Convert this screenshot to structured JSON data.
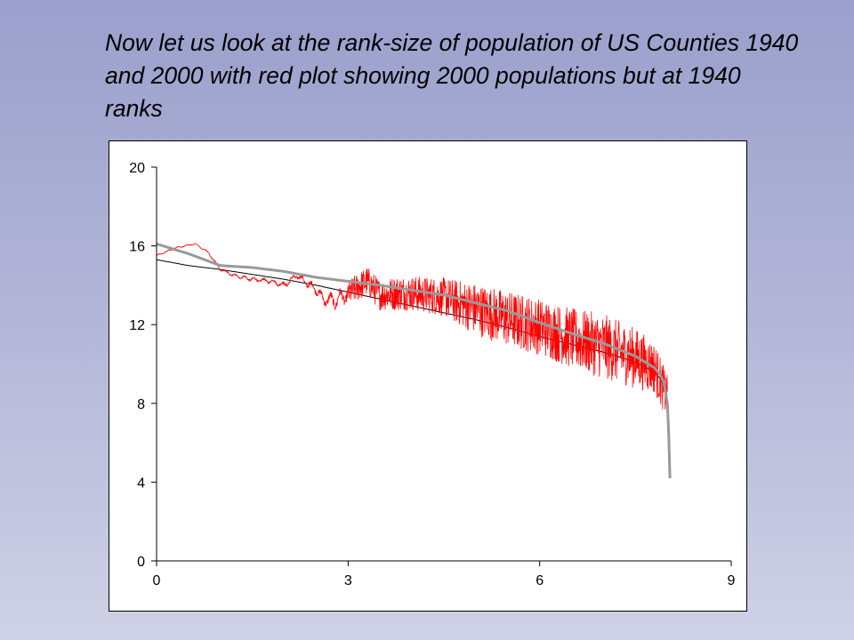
{
  "slide": {
    "title": "Now let us look at the rank-size of population of US Counties 1940 and 2000 with red plot showing 2000 populations but at 1940 ranks"
  },
  "chart_data": {
    "type": "line",
    "title": "",
    "xlabel": "",
    "ylabel": "",
    "xlim": [
      0,
      9
    ],
    "ylim": [
      0,
      20
    ],
    "x_ticks": [
      "0",
      "3",
      "6",
      "9"
    ],
    "y_ticks": [
      "0",
      "4",
      "8",
      "12",
      "16",
      "20"
    ],
    "grid": false,
    "legend": "none",
    "series": [
      {
        "color": "#000000",
        "style": "thin",
        "x": [
          0,
          0.5,
          1,
          1.5,
          2,
          2.5,
          3,
          3.5,
          4,
          4.5,
          5,
          5.5,
          6,
          6.5,
          7,
          7.5,
          7.8,
          7.9,
          7.95,
          8.0,
          8.02,
          8.04
        ],
        "y": [
          15.3,
          15.0,
          14.8,
          14.55,
          14.3,
          14.0,
          13.65,
          13.3,
          12.95,
          12.6,
          12.25,
          11.85,
          11.4,
          11.0,
          10.6,
          10.1,
          9.6,
          9.2,
          8.8,
          8.0,
          7.2,
          5.5
        ]
      },
      {
        "color": "#999999",
        "style": "thick",
        "x": [
          0,
          0.5,
          1,
          1.5,
          2,
          2.5,
          3,
          3.5,
          4,
          4.5,
          5,
          5.5,
          6,
          6.5,
          7,
          7.5,
          7.8,
          7.9,
          7.95,
          8.0,
          8.02,
          8.04
        ],
        "y": [
          16.1,
          15.6,
          15.0,
          14.9,
          14.7,
          14.4,
          14.2,
          14.0,
          13.75,
          13.5,
          13.1,
          12.7,
          12.1,
          11.55,
          11.05,
          10.4,
          9.8,
          9.4,
          9.0,
          8.0,
          6.5,
          4.2
        ]
      },
      {
        "color": "#ff0000",
        "style": "noisy",
        "x": [
          0,
          0.3,
          0.6,
          0.8,
          1.0,
          1.2,
          1.5,
          1.8,
          2.0,
          2.2,
          2.4,
          2.5,
          2.6,
          2.8,
          3.0,
          3.3,
          3.5,
          3.8,
          4.0,
          4.5,
          5.0,
          5.5,
          6.0,
          6.5,
          7.0,
          7.5,
          7.8,
          8.0
        ],
        "y": [
          15.5,
          15.9,
          16.1,
          15.7,
          14.8,
          14.5,
          14.3,
          14.2,
          14.0,
          14.5,
          14.0,
          13.8,
          13.3,
          13.2,
          13.6,
          14.2,
          13.5,
          13.6,
          13.6,
          13.4,
          12.8,
          12.3,
          11.9,
          11.3,
          10.9,
          10.3,
          9.8,
          8.3
        ],
        "noise_amplitude": [
          0.05,
          0.05,
          0.05,
          0.05,
          0.1,
          0.1,
          0.15,
          0.15,
          0.2,
          0.2,
          0.3,
          0.3,
          0.4,
          0.5,
          0.6,
          0.7,
          0.7,
          0.8,
          0.8,
          0.9,
          1.2,
          1.3,
          1.3,
          1.4,
          1.5,
          1.4,
          1.2,
          1.0
        ]
      }
    ]
  }
}
